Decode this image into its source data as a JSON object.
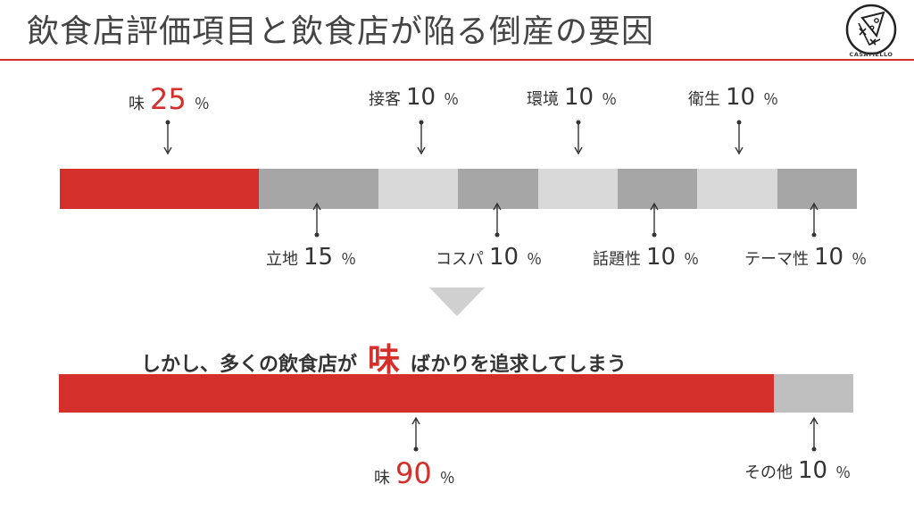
{
  "title": "飲食店評価項目と飲食店が陥る倒産の要因",
  "logo": {
    "name": "CASATIELLO",
    "icon": "pizza-slice-icon"
  },
  "colors": {
    "accent": "#d42f2b",
    "gray_dark": "#a6a6a6",
    "gray_light": "#d9d9d9"
  },
  "top_bar": {
    "segments": [
      {
        "key": "味",
        "value": 25,
        "color": "#d42f2b"
      },
      {
        "key": "立地",
        "value": 15,
        "color": "#a6a6a6"
      },
      {
        "key": "接客",
        "value": 10,
        "color": "#d9d9d9"
      },
      {
        "key": "コスパ",
        "value": 10,
        "color": "#a6a6a6"
      },
      {
        "key": "環境",
        "value": 10,
        "color": "#d9d9d9"
      },
      {
        "key": "話題性",
        "value": 10,
        "color": "#a6a6a6"
      },
      {
        "key": "衛生",
        "value": 10,
        "color": "#d9d9d9"
      },
      {
        "key": "テーマ性",
        "value": 10,
        "color": "#a6a6a6"
      }
    ],
    "labels": {
      "taste": {
        "name": "味",
        "value": "25",
        "unit": "％"
      },
      "service": {
        "name": "接客",
        "value": "10",
        "unit": "％"
      },
      "environment": {
        "name": "環境",
        "value": "10",
        "unit": "％"
      },
      "hygiene": {
        "name": "衛生",
        "value": "10",
        "unit": "％"
      },
      "location": {
        "name": "立地",
        "value": "15",
        "unit": "％"
      },
      "cost": {
        "name": "コスパ",
        "value": "10",
        "unit": "％"
      },
      "topic": {
        "name": "話題性",
        "value": "10",
        "unit": "％"
      },
      "theme": {
        "name": "テーマ性",
        "value": "10",
        "unit": "％"
      }
    }
  },
  "message": {
    "before": "しかし、多くの飲食店が",
    "highlight": "味",
    "after": "ばかりを追求してしまう"
  },
  "bottom_bar": {
    "segments": [
      {
        "key": "味",
        "value": 90,
        "color": "#d42f2b"
      },
      {
        "key": "その他",
        "value": 10,
        "color": "#bfbfbf"
      }
    ],
    "labels": {
      "taste": {
        "name": "味",
        "value": "90",
        "unit": "％"
      },
      "other": {
        "name": "その他",
        "value": "10",
        "unit": "％"
      }
    }
  }
}
